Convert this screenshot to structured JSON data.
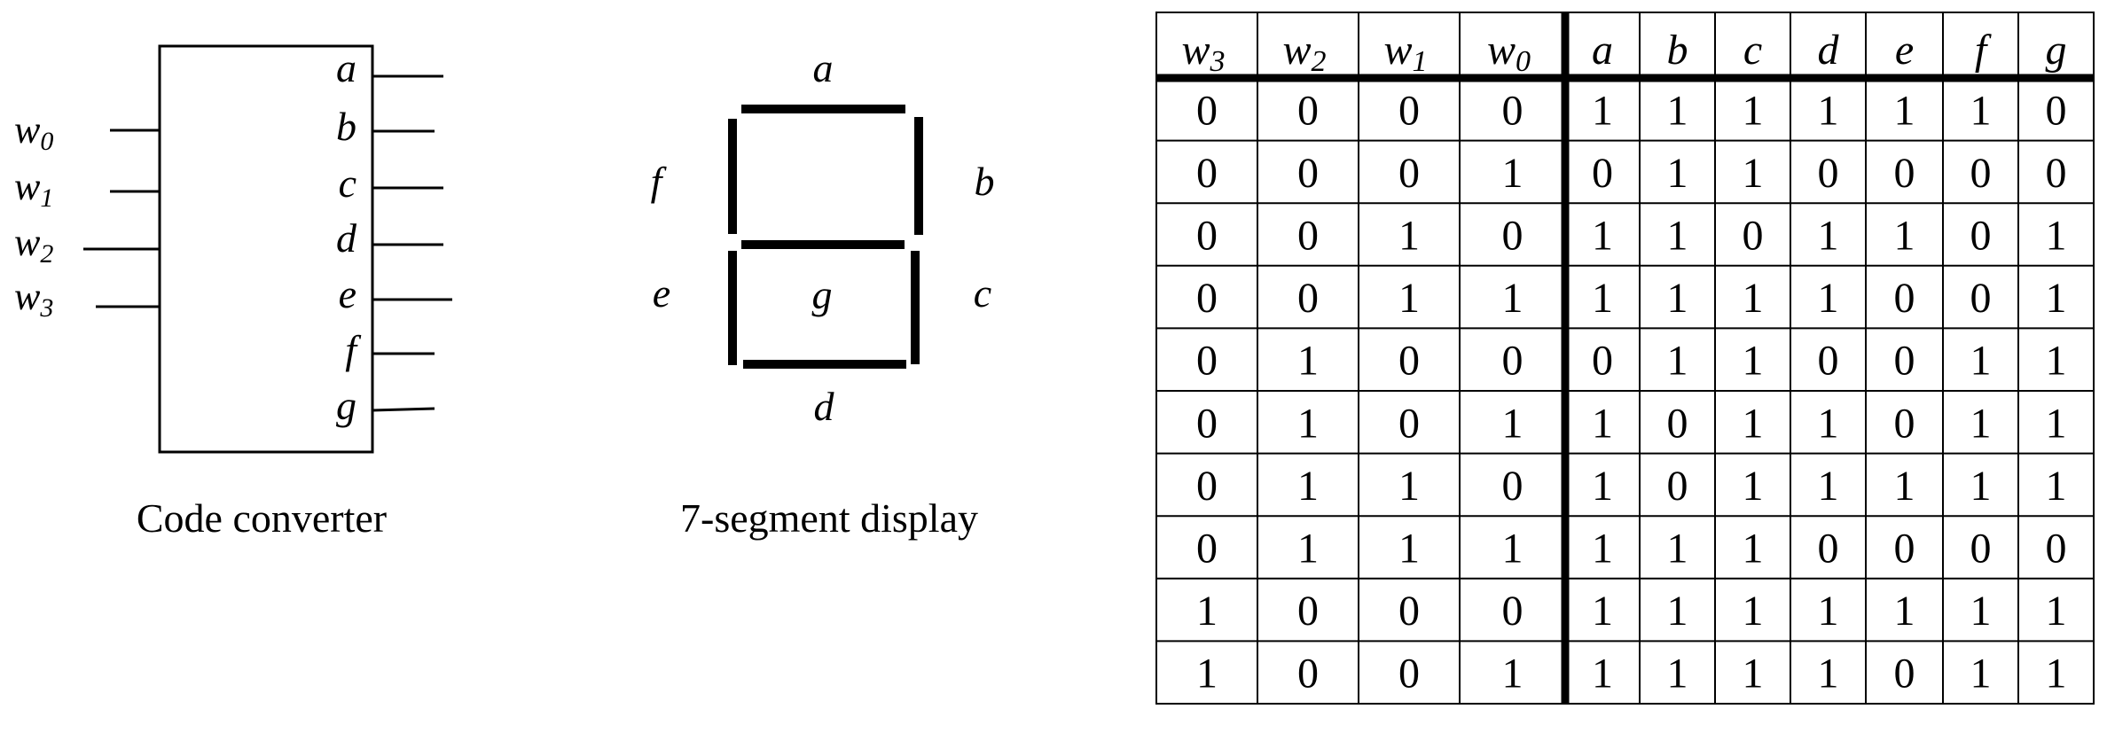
{
  "converter": {
    "caption": "Code converter",
    "inputs": [
      {
        "base": "w",
        "sub": "0"
      },
      {
        "base": "w",
        "sub": "1"
      },
      {
        "base": "w",
        "sub": "2"
      },
      {
        "base": "w",
        "sub": "3"
      }
    ],
    "outputs": [
      "a",
      "b",
      "c",
      "d",
      "e",
      "f",
      "g"
    ]
  },
  "display": {
    "caption": "7-segment display",
    "segment_labels": {
      "a": "a",
      "b": "b",
      "c": "c",
      "d": "d",
      "e": "e",
      "f": "f",
      "g": "g"
    }
  },
  "truth_table": {
    "input_headers": [
      {
        "base": "w",
        "sub": "3"
      },
      {
        "base": "w",
        "sub": "2"
      },
      {
        "base": "w",
        "sub": "1"
      },
      {
        "base": "w",
        "sub": "0"
      }
    ],
    "output_headers": [
      "a",
      "b",
      "c",
      "d",
      "e",
      "f",
      "g"
    ],
    "rows": [
      [
        "0",
        "0",
        "0",
        "0",
        "1",
        "1",
        "1",
        "1",
        "1",
        "1",
        "0"
      ],
      [
        "0",
        "0",
        "0",
        "1",
        "0",
        "1",
        "1",
        "0",
        "0",
        "0",
        "0"
      ],
      [
        "0",
        "0",
        "1",
        "0",
        "1",
        "1",
        "0",
        "1",
        "1",
        "0",
        "1"
      ],
      [
        "0",
        "0",
        "1",
        "1",
        "1",
        "1",
        "1",
        "1",
        "0",
        "0",
        "1"
      ],
      [
        "0",
        "1",
        "0",
        "0",
        "0",
        "1",
        "1",
        "0",
        "0",
        "1",
        "1"
      ],
      [
        "0",
        "1",
        "0",
        "1",
        "1",
        "0",
        "1",
        "1",
        "0",
        "1",
        "1"
      ],
      [
        "0",
        "1",
        "1",
        "0",
        "1",
        "0",
        "1",
        "1",
        "1",
        "1",
        "1"
      ],
      [
        "0",
        "1",
        "1",
        "1",
        "1",
        "1",
        "1",
        "0",
        "0",
        "0",
        "0"
      ],
      [
        "1",
        "0",
        "0",
        "0",
        "1",
        "1",
        "1",
        "1",
        "1",
        "1",
        "1"
      ],
      [
        "1",
        "0",
        "0",
        "1",
        "1",
        "1",
        "1",
        "1",
        "0",
        "1",
        "1"
      ]
    ]
  }
}
